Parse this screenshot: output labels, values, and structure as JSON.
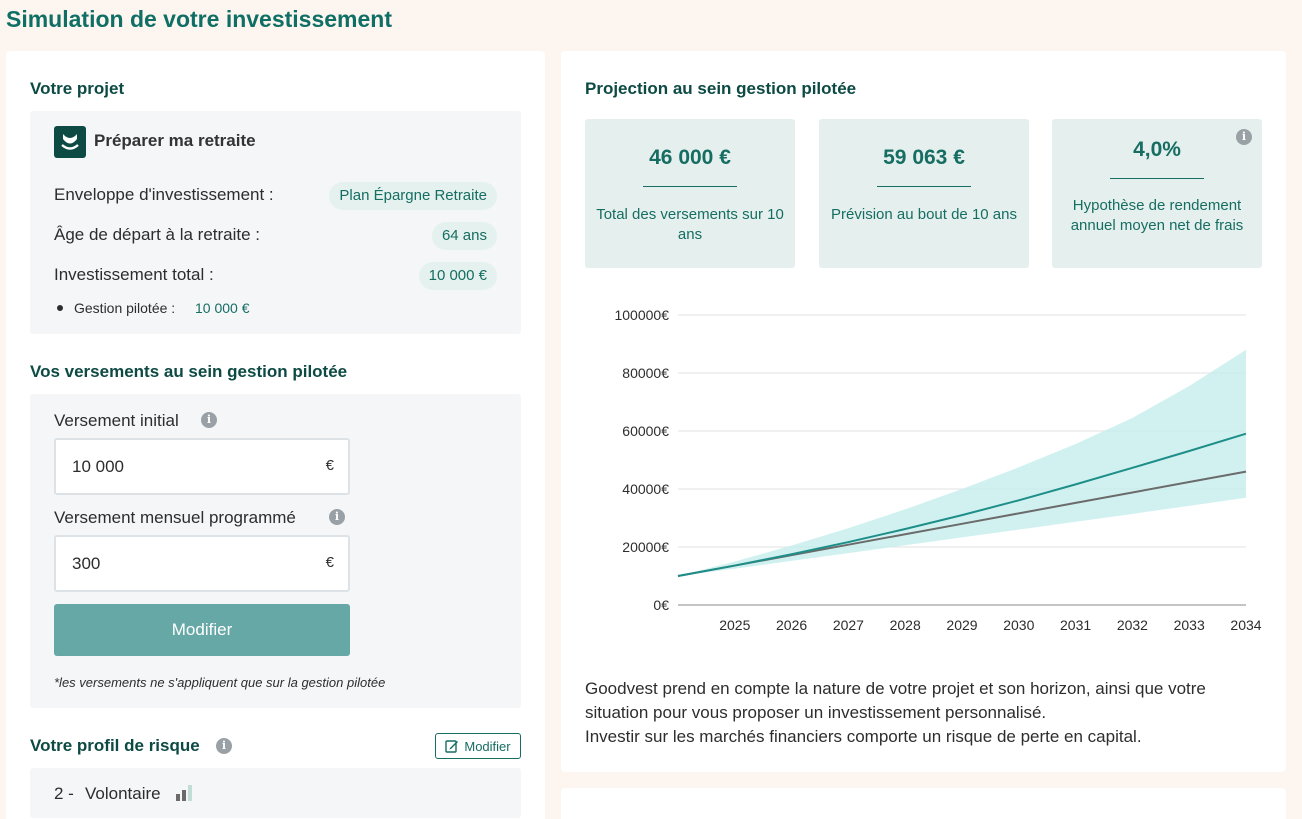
{
  "page_title": "Simulation de votre investissement",
  "project": {
    "heading": "Votre projet",
    "goal_title": "Préparer ma retraite",
    "envelope_label": "Enveloppe d'investissement :",
    "envelope_value": "Plan Épargne Retraite",
    "retirement_age_label": "Âge de départ à la retraite :",
    "retirement_age_value": "64 ans",
    "total_label": "Investissement total :",
    "total_value": "10 000 €",
    "managed_label": "Gestion pilotée :",
    "managed_value": "10 000 €"
  },
  "payments": {
    "heading": "Vos versements au sein gestion pilotée",
    "initial_label": "Versement initial",
    "initial_value": "10 000",
    "monthly_label": "Versement mensuel programmé",
    "monthly_value": "300",
    "currency": "€",
    "submit_label": "Modifier",
    "note": "*les versements ne s'appliquent que sur la gestion pilotée"
  },
  "risk": {
    "heading": "Votre profil de risque",
    "edit_label": "Modifier",
    "profile_number": "2 -",
    "profile_name": "Volontaire"
  },
  "projection": {
    "heading": "Projection au sein gestion pilotée",
    "stats": [
      {
        "value": "46 000 €",
        "label": "Total des versements sur 10 ans"
      },
      {
        "value": "59 063 €",
        "label": "Prévision au bout de 10 ans"
      },
      {
        "value": "4,0%",
        "label": "Hypothèse de rendement annuel moyen net de frais"
      }
    ],
    "description_1": "Goodvest prend en compte la nature de votre projet et son horizon, ainsi que votre situation pour vous proposer un investissement personnalisé.",
    "description_2": "Investir sur les marchés financiers comporte un risque de perte en capital."
  },
  "chart_data": {
    "type": "area",
    "x": [
      2024,
      2025,
      2026,
      2027,
      2028,
      2029,
      2030,
      2031,
      2032,
      2033,
      2034
    ],
    "x_tick_labels": [
      "2025",
      "2026",
      "2027",
      "2028",
      "2029",
      "2030",
      "2031",
      "2032",
      "2033",
      "2034"
    ],
    "y_tick_labels": [
      "0€",
      "20000€",
      "40000€",
      "60000€",
      "80000€",
      "100000€"
    ],
    "ylim": [
      0,
      100000
    ],
    "grid": true,
    "series": [
      {
        "values": [
          10000,
          13600,
          17500,
          21700,
          26200,
          31000,
          36100,
          41600,
          47300,
          53100,
          59063
        ]
      },
      {
        "values": [
          10000,
          13600,
          17200,
          20800,
          24400,
          28000,
          31600,
          35200,
          38800,
          42400,
          46000
        ]
      },
      {
        "values": [
          10000,
          15000,
          20500,
          26500,
          33000,
          40000,
          47500,
          55500,
          64500,
          75500,
          88000
        ]
      },
      {
        "values": [
          10000,
          12500,
          15200,
          17900,
          20600,
          23300,
          26000,
          28700,
          31400,
          34200,
          37000
        ]
      }
    ],
    "colors": {
      "projection": "#1e8f88",
      "payments": "#6b6b6b",
      "band": "#c6eeee"
    }
  }
}
